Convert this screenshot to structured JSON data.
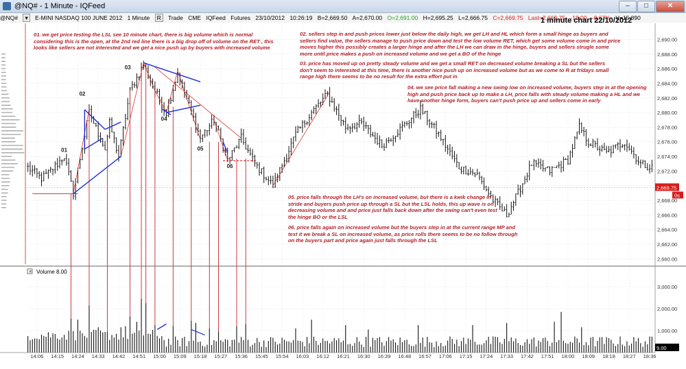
{
  "window": {
    "title": "@NQ# - 1 Minute - IQFeed",
    "buttons": {
      "minimize": "–",
      "maximize": "□",
      "close": "✕"
    }
  },
  "infobar": {
    "symbol": "@NQ#",
    "description": "E-MINI NASDAQ 100 JUNE 2012",
    "interval": "1 Minute",
    "mode_button": "R",
    "trade": "Trade",
    "exchange": "CME",
    "feed": "IQFeed",
    "type": "Futures",
    "date": "23/10/2012",
    "time": "10:26:19",
    "bid": "B=2,669.50",
    "ask": "A=2,670.00",
    "open": "O=2,691.00",
    "high": "H=2,695.25",
    "low": "L=2,666.75",
    "close": "C=2,669.75",
    "last": "Last=2,669.75",
    "change": "-18.00",
    "change_pct": "-0.67%",
    "volume": "V=15,890"
  },
  "colors": {
    "up": "#1fa21f",
    "down": "#d81c1c",
    "annotation": "#b3202a",
    "trendline": "#1f2fd6",
    "price_label_bg": "#d81c1c"
  },
  "chart_data": [
    {
      "type": "ohlc",
      "title": "1 minute chart 22/10/2012",
      "y_ticks": [
        2660,
        2662,
        2664,
        2666,
        2668,
        2670,
        2672,
        2674,
        2676,
        2678,
        2680,
        2682,
        2684,
        2686,
        2688,
        2690
      ],
      "y_tick_labels": [
        "2,660.00",
        "2,662.00",
        "2,664.00",
        "2,666.00",
        "2,668.00",
        "2,670.00",
        "2,672.00",
        "2,674.00",
        "2,676.00",
        "2,678.00",
        "2,680.00",
        "2,682.00",
        "2,684.00",
        "2,686.00",
        "2,688.00",
        "2,690.00"
      ],
      "ylim": [
        2659,
        2692.2
      ],
      "last_price_label": "2,669.75",
      "last_price": 2669.75,
      "countdown_label": "0s",
      "x_labels": [
        "14:06",
        "14:15",
        "14:24",
        "14:33",
        "14:42",
        "14:51",
        "15:00",
        "15:09",
        "15:18",
        "15:27",
        "15:36",
        "15:45",
        "15:54",
        "16:03",
        "16:12",
        "16:21",
        "16:30",
        "16:39",
        "16:48",
        "16:57",
        "17:06",
        "17:15",
        "17:24",
        "17:33",
        "17:42",
        "17:51",
        "18:00",
        "18:09",
        "18:18",
        "18:27",
        "18:36",
        "18:45",
        "18:54",
        "19:03",
        "19:12",
        "19:21",
        "19:30",
        "19:39",
        "19:48"
      ],
      "anchors": [
        [
          0,
          2672.5
        ],
        [
          6,
          2671
        ],
        [
          10,
          2672
        ],
        [
          16,
          2674
        ],
        [
          20,
          2669
        ],
        [
          27,
          2680
        ],
        [
          34,
          2675
        ],
        [
          36,
          2678.5
        ],
        [
          40,
          2674
        ],
        [
          45,
          2683
        ],
        [
          51,
          2686.5
        ],
        [
          56,
          2683
        ],
        [
          61,
          2680
        ],
        [
          66,
          2685.5
        ],
        [
          71,
          2681
        ],
        [
          76,
          2676.5
        ],
        [
          82,
          2679
        ],
        [
          88,
          2673.5
        ],
        [
          94,
          2676.5
        ],
        [
          100,
          2673
        ],
        [
          108,
          2670
        ],
        [
          118,
          2677
        ],
        [
          125,
          2680
        ],
        [
          132,
          2682.5
        ],
        [
          140,
          2678
        ],
        [
          147,
          2678.5
        ],
        [
          156,
          2675.5
        ],
        [
          165,
          2678
        ],
        [
          173,
          2680.5
        ],
        [
          181,
          2677
        ],
        [
          190,
          2672.5
        ],
        [
          198,
          2671.5
        ],
        [
          205,
          2668
        ],
        [
          211,
          2666
        ],
        [
          216,
          2669
        ],
        [
          222,
          2673
        ],
        [
          230,
          2672
        ],
        [
          238,
          2673.5
        ],
        [
          243,
          2678
        ],
        [
          247,
          2676
        ],
        [
          255,
          2674.5
        ],
        [
          263,
          2676
        ],
        [
          270,
          2673
        ],
        [
          275,
          2672.5
        ]
      ],
      "bars": 276,
      "labels": [
        {
          "text": "01",
          "bar": 16,
          "price": 2674.6
        },
        {
          "text": "02",
          "bar": 24,
          "price": 2682.3
        },
        {
          "text": "03",
          "bar": 44,
          "price": 2685.9
        },
        {
          "text": "04",
          "bar": 60,
          "price": 2678.9
        },
        {
          "text": "05",
          "bar": 76,
          "price": 2674.8
        },
        {
          "text": "06",
          "bar": 89,
          "price": 2672.4
        }
      ]
    },
    {
      "type": "bar",
      "title": "Volume",
      "legend": "Volume",
      "current_value": "8.00",
      "y_ticks": [
        1000,
        2000,
        3000
      ],
      "y_tick_labels": [
        "1,000.00",
        "2,000.00",
        "3,000.00"
      ],
      "ylim": [
        0,
        3500
      ],
      "last_value_label": "9.00",
      "spikes": [
        [
          19,
          1550
        ],
        [
          22,
          1500
        ],
        [
          27,
          2150
        ],
        [
          31,
          1150
        ],
        [
          35,
          950
        ],
        [
          41,
          1150
        ],
        [
          43,
          1200
        ],
        [
          45,
          1650
        ],
        [
          48,
          1400
        ],
        [
          50,
          2450
        ],
        [
          52,
          2250
        ],
        [
          56,
          1250
        ],
        [
          64,
          1200
        ],
        [
          72,
          1450
        ],
        [
          74,
          1350
        ],
        [
          80,
          1100
        ],
        [
          84,
          950
        ],
        [
          92,
          1200
        ],
        [
          96,
          1300
        ],
        [
          118,
          1100
        ],
        [
          125,
          1500
        ],
        [
          140,
          1250
        ],
        [
          150,
          1050
        ],
        [
          172,
          1250
        ],
        [
          196,
          1250
        ],
        [
          211,
          1350
        ],
        [
          232,
          1400
        ],
        [
          235,
          1850
        ],
        [
          244,
          1150
        ]
      ]
    }
  ],
  "notes": {
    "n01": "01. we get price testing the LSL see 10 minute chart, there is big volume which is normal considering this is the open, at the 2nd red line there is a big drop off of volume on the RET , this looks like sellers are not interested and we get a nice push up by buyers with increased volume",
    "n02": "02. sellers step in and push prices lower just below the daily high, we get LH and HL which form a small hinge as buyers and sellers find value, the sellers manage to push price down and test the low volume RET, which get some volume come in and price moves higher this possibly creates a larger hinge and after the LH we can draw in the hinge, buyers and sellers strugle some more until price makes a push on increased volume and we get a BO of the hinge",
    "n03": "03. price has moved up on pretty steady volume and we get a small RET on decreased volume breaking a SL but the sellers don't seem to interested at this time, there is another nice push up on increased volume but as we come to R at fridays small range high there seems to be no result for the extra effort put in",
    "n04": "04. we see price fall making a new swing low on increased volume, buyers step in at the opening high and push price back up to make a LH, price falls with steady volume making a HL and we have another hinge form, buyers can't push price up and sellers come in early",
    "n05": "05.  price falls through the LH's on increased volume, but there is a kwik change in stride and buyers push price up through a SL but the LSL holds, this up wave is on decreasing volume and  and price just falls back down after the swing can't even test the hinge BO or the LSL",
    "n06": "06. price falls again on increased volume but the buyers step in at the current range MP and test it we break a SL on increased volume, as price rolls there seems to be no follow through on the buyers part and price again just falls through the LSL"
  }
}
